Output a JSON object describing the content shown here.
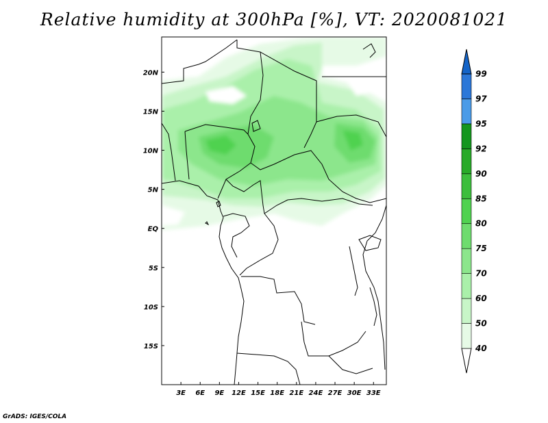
{
  "title": "Relative humidity at 300hPa [%], VT: 2020081021",
  "credit": "GrADS: IGES/COLA",
  "map": {
    "type": "filled-contour",
    "variable": "Relative humidity",
    "level": "300hPa",
    "units": "%",
    "valid_time": "2020081021",
    "lon_range": [
      0,
      35
    ],
    "lat_range": [
      -20,
      24.5
    ],
    "lat_ticks": [
      {
        "value": 20,
        "label": "20N"
      },
      {
        "value": 15,
        "label": "15N"
      },
      {
        "value": 10,
        "label": "10N"
      },
      {
        "value": 5,
        "label": "5N"
      },
      {
        "value": 0,
        "label": "EQ"
      },
      {
        "value": -5,
        "label": "5S"
      },
      {
        "value": -10,
        "label": "10S"
      },
      {
        "value": -15,
        "label": "15S"
      }
    ],
    "lon_ticks": [
      {
        "value": 3,
        "label": "3E"
      },
      {
        "value": 6,
        "label": "6E"
      },
      {
        "value": 9,
        "label": "9E"
      },
      {
        "value": 12,
        "label": "12E"
      },
      {
        "value": 15,
        "label": "15E"
      },
      {
        "value": 18,
        "label": "18E"
      },
      {
        "value": 21,
        "label": "21E"
      },
      {
        "value": 24,
        "label": "24E"
      },
      {
        "value": 27,
        "label": "27E"
      },
      {
        "value": 30,
        "label": "30E"
      },
      {
        "value": 33,
        "label": "33E"
      }
    ]
  },
  "colorbar": {
    "levels": [
      "40",
      "50",
      "60",
      "70",
      "75",
      "80",
      "85",
      "90",
      "92",
      "95",
      "97",
      "99"
    ],
    "colors": [
      "#ffffff",
      "#e6fae6",
      "#c8f5c8",
      "#aaf0aa",
      "#8ce68c",
      "#6edc6e",
      "#50d250",
      "#3cbe3c",
      "#28aa28",
      "#14961e",
      "#4a9be8",
      "#2b77d8",
      "#1464c8"
    ]
  }
}
